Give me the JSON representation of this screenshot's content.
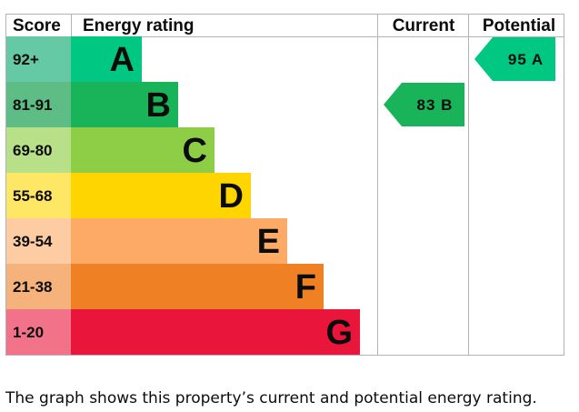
{
  "chart_data": {
    "type": "bar",
    "headers": {
      "score": "Score",
      "rating": "Energy rating",
      "current": "Current",
      "potential": "Potential"
    },
    "bands": [
      {
        "letter": "A",
        "range": "92+",
        "color": "#00c781",
        "score_bg": "#64c9a4",
        "text_color": "#0b0c0c"
      },
      {
        "letter": "B",
        "range": "81-91",
        "color": "#19b459",
        "score_bg": "#5dbd85",
        "text_color": "#0b0c0c"
      },
      {
        "letter": "C",
        "range": "69-80",
        "color": "#8dce46",
        "score_bg": "#b7e089",
        "text_color": "#0b0c0c"
      },
      {
        "letter": "D",
        "range": "55-68",
        "color": "#ffd500",
        "score_bg": "#ffe766",
        "text_color": "#0b0c0c"
      },
      {
        "letter": "E",
        "range": "39-54",
        "color": "#fcaa65",
        "score_bg": "#fdcca3",
        "text_color": "#0b0c0c"
      },
      {
        "letter": "F",
        "range": "21-38",
        "color": "#ef8023",
        "score_bg": "#f5b37b",
        "text_color": "#0b0c0c"
      },
      {
        "letter": "G",
        "range": "1-20",
        "color": "#e9153b",
        "score_bg": "#f27389",
        "text_color": "#0b0c0c"
      }
    ],
    "current": {
      "value": 83,
      "band": "B",
      "label": "83 B",
      "color": "#19b459"
    },
    "potential": {
      "value": 95,
      "band": "A",
      "label": "95 A",
      "color": "#00c781"
    }
  },
  "caption": "The graph shows this property’s current and potential energy rating."
}
